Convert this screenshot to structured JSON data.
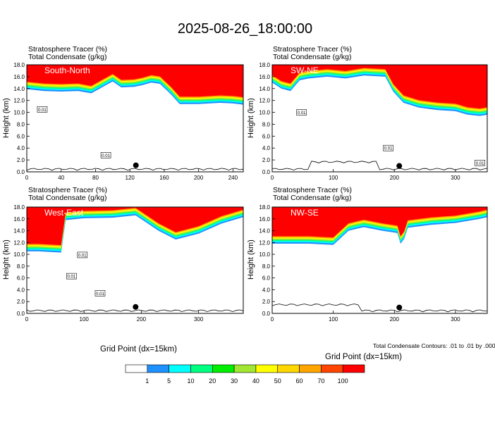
{
  "title": "2025-08-26_18:00:00",
  "header_line1": "Stratosphere Tracer   (%)",
  "header_line2": "Total Condensate   (g/kg)",
  "y_axis_label": "Height (km)",
  "x_axis_label": "Grid Point (dx=15km)",
  "contour_note": "Total Condensate Contours: .01 to .01 by .000",
  "colorbar": {
    "levels": [
      "1",
      "5",
      "10",
      "20",
      "30",
      "40",
      "50",
      "60",
      "70",
      "100"
    ],
    "colors": [
      "#ffffff",
      "#1e90ff",
      "#00ffff",
      "#00ff7f",
      "#00ee00",
      "#a0e632",
      "#ffff00",
      "#ffd700",
      "#ffa500",
      "#ff4500",
      "#ff0000"
    ]
  },
  "chart_data": [
    {
      "type": "heatmap",
      "title": "South-North",
      "xlim": [
        0,
        252
      ],
      "ylim": [
        0,
        18
      ],
      "xticks": [
        "0",
        "40",
        "80",
        "120",
        "160",
        "200",
        "240"
      ],
      "xtick_values": [
        0,
        40,
        80,
        120,
        160,
        200,
        240
      ],
      "yticks": [
        "0.0",
        "2.0",
        "4.0",
        "6.0",
        "8.0",
        "10.0",
        "12.0",
        "14.0",
        "16.0",
        "18.0"
      ],
      "tracer_bottom_km": [
        [
          0,
          13.9
        ],
        [
          20,
          13.6
        ],
        [
          40,
          13.5
        ],
        [
          60,
          13.6
        ],
        [
          75,
          13.2
        ],
        [
          85,
          14.0
        ],
        [
          100,
          15.2
        ],
        [
          110,
          14.2
        ],
        [
          125,
          14.3
        ],
        [
          135,
          14.6
        ],
        [
          145,
          15.0
        ],
        [
          155,
          14.8
        ],
        [
          168,
          13.0
        ],
        [
          178,
          11.4
        ],
        [
          200,
          11.4
        ],
        [
          225,
          11.6
        ],
        [
          240,
          11.5
        ],
        [
          252,
          11.3
        ]
      ],
      "contour_labels": [
        {
          "x": 18,
          "y": 10.5,
          "text": "0.01"
        },
        {
          "x": 92,
          "y": 2.8,
          "text": "0.01"
        }
      ],
      "marker": {
        "x": 127,
        "y": 1.1
      }
    },
    {
      "type": "heatmap",
      "title": "SW-NE",
      "xlim": [
        0,
        352
      ],
      "ylim": [
        0,
        18
      ],
      "xticks": [
        "0",
        "100",
        "200",
        "300"
      ],
      "xtick_values": [
        0,
        100,
        200,
        300
      ],
      "yticks": [
        "0.0",
        "2.0",
        "4.0",
        "6.0",
        "8.0",
        "10.0",
        "12.0",
        "14.0",
        "16.0",
        "18.0"
      ],
      "tracer_bottom_km": [
        [
          0,
          15.0
        ],
        [
          15,
          14.0
        ],
        [
          30,
          13.6
        ],
        [
          45,
          15.4
        ],
        [
          60,
          15.7
        ],
        [
          90,
          16.0
        ],
        [
          120,
          15.7
        ],
        [
          150,
          16.2
        ],
        [
          185,
          16.0
        ],
        [
          198,
          13.5
        ],
        [
          215,
          11.6
        ],
        [
          240,
          10.8
        ],
        [
          270,
          10.4
        ],
        [
          300,
          10.2
        ],
        [
          320,
          9.6
        ],
        [
          340,
          9.4
        ],
        [
          352,
          9.6
        ]
      ],
      "contour_labels": [
        {
          "x": 48,
          "y": 10.0,
          "text": "0.01"
        },
        {
          "x": 190,
          "y": 4.0,
          "text": "0.01"
        },
        {
          "x": 340,
          "y": 1.5,
          "text": "0.01"
        }
      ],
      "marker": {
        "x": 208,
        "y": 1.0
      }
    },
    {
      "type": "heatmap",
      "title": "West-East",
      "xlim": [
        0,
        378
      ],
      "ylim": [
        0,
        18
      ],
      "xticks": [
        "0",
        "100",
        "200",
        "300"
      ],
      "xtick_values": [
        0,
        100,
        200,
        300
      ],
      "yticks": [
        "0.0",
        "2.0",
        "4.0",
        "6.0",
        "8.0",
        "10.0",
        "12.0",
        "14.0",
        "16.0",
        "18.0"
      ],
      "tracer_bottom_km": [
        [
          0,
          10.5
        ],
        [
          20,
          10.5
        ],
        [
          60,
          10.3
        ],
        [
          68,
          15.8
        ],
        [
          100,
          16.1
        ],
        [
          150,
          16.2
        ],
        [
          190,
          16.6
        ],
        [
          230,
          14.0
        ],
        [
          260,
          12.5
        ],
        [
          300,
          13.5
        ],
        [
          340,
          15.2
        ],
        [
          378,
          16.3
        ]
      ],
      "contour_labels": [
        {
          "x": 97,
          "y": 9.9,
          "text": "0.01"
        },
        {
          "x": 78,
          "y": 6.3,
          "text": "0.01"
        },
        {
          "x": 128,
          "y": 3.4,
          "text": "0.01"
        }
      ],
      "marker": {
        "x": 190,
        "y": 1.1
      }
    },
    {
      "type": "heatmap",
      "title": "NW-SE",
      "xlim": [
        0,
        352
      ],
      "ylim": [
        0,
        18
      ],
      "xticks": [
        "0",
        "100",
        "200",
        "300"
      ],
      "xtick_values": [
        0,
        100,
        200,
        300
      ],
      "yticks": [
        "0.0",
        "2.0",
        "4.0",
        "6.0",
        "8.0",
        "10.0",
        "12.0",
        "14.0",
        "16.0",
        "18.0"
      ],
      "tracer_bottom_km": [
        [
          0,
          11.8
        ],
        [
          60,
          11.8
        ],
        [
          100,
          11.6
        ],
        [
          125,
          14.0
        ],
        [
          150,
          14.6
        ],
        [
          180,
          14.0
        ],
        [
          205,
          13.6
        ],
        [
          210,
          11.8
        ],
        [
          216,
          12.6
        ],
        [
          222,
          14.5
        ],
        [
          260,
          15.0
        ],
        [
          300,
          15.3
        ],
        [
          340,
          16.0
        ],
        [
          352,
          16.3
        ]
      ],
      "contour_labels": [],
      "marker": {
        "x": 208,
        "y": 1.0
      }
    }
  ]
}
